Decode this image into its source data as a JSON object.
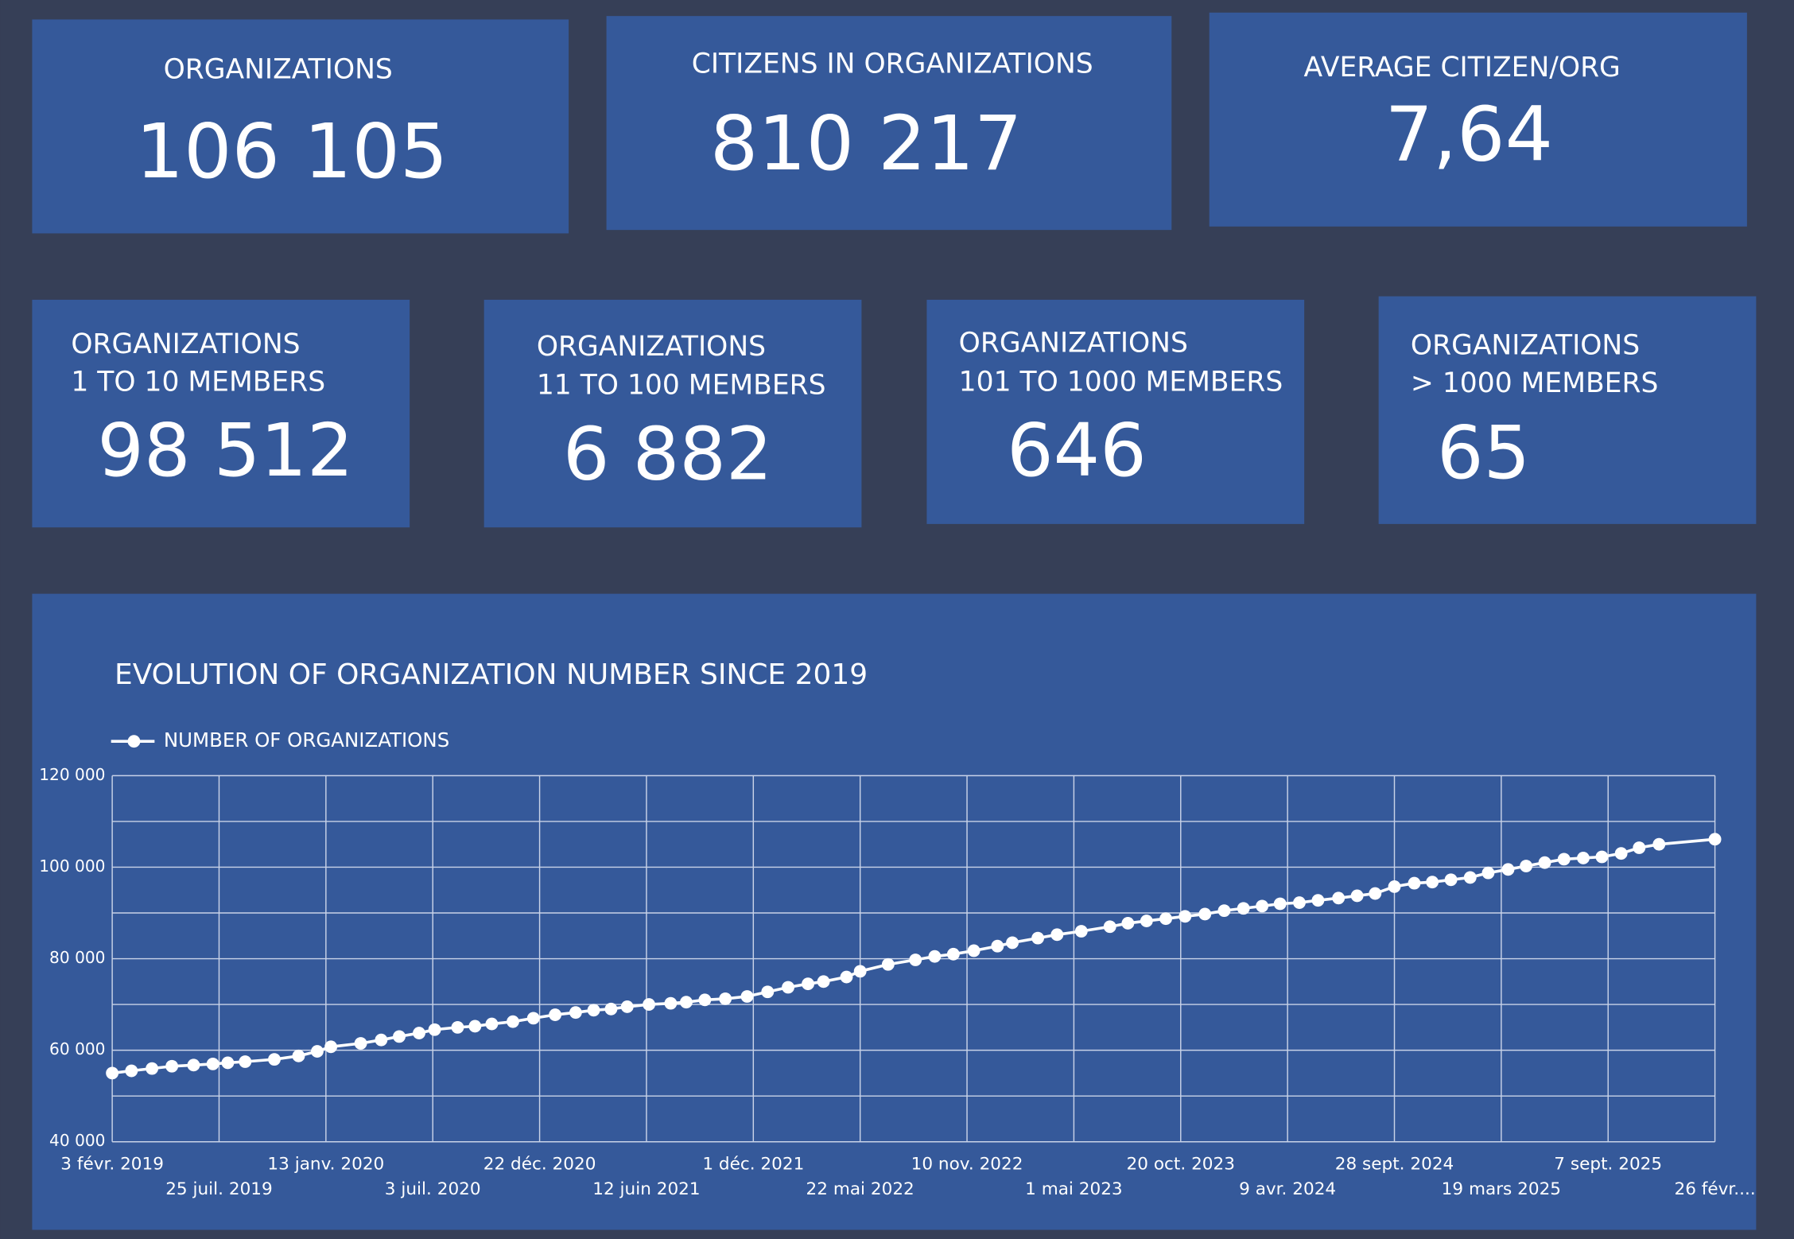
{
  "cards": [
    {
      "title_lines": [
        "ORGANIZATIONS"
      ],
      "value": "106 105"
    },
    {
      "title_lines": [
        "CITIZENS IN ORGANIZATIONS"
      ],
      "value": "810 217"
    },
    {
      "title_lines": [
        "AVERAGE CITIZEN/ORG"
      ],
      "value": "7,64"
    },
    {
      "title_lines": [
        "ORGANIZATIONS",
        "1 TO 10 MEMBERS"
      ],
      "value": "98 512"
    },
    {
      "title_lines": [
        "ORGANIZATIONS",
        "11 TO 100 MEMBERS"
      ],
      "value": "6 882"
    },
    {
      "title_lines": [
        "ORGANIZATIONS",
        "101 TO 1000 MEMBERS"
      ],
      "value": "646"
    },
    {
      "title_lines": [
        "ORGANIZATIONS",
        "> 1000 MEMBERS"
      ],
      "value": "65"
    }
  ],
  "chart_data": {
    "type": "line",
    "title": "EVOLUTION OF ORGANIZATION NUMBER SINCE 2019",
    "x": [
      "2019-02-03",
      "2019-03-06",
      "2019-04-08",
      "2019-05-10",
      "2019-06-14",
      "2019-07-15",
      "2019-08-08",
      "2019-09-05",
      "2019-10-22",
      "2019-11-30",
      "2019-12-30",
      "2020-01-21",
      "2020-03-09",
      "2020-04-11",
      "2020-05-10",
      "2020-06-11",
      "2020-07-06",
      "2020-08-12",
      "2020-09-09",
      "2020-10-06",
      "2020-11-09",
      "2020-12-12",
      "2021-01-16",
      "2021-02-18",
      "2021-03-19",
      "2021-04-16",
      "2021-05-12",
      "2021-06-16",
      "2021-07-21",
      "2021-08-15",
      "2021-09-14",
      "2021-10-17",
      "2021-11-21",
      "2021-12-24",
      "2022-01-26",
      "2022-02-27",
      "2022-03-24",
      "2022-04-30",
      "2022-05-22",
      "2022-07-06",
      "2022-08-19",
      "2022-09-19",
      "2022-10-19",
      "2022-11-21",
      "2022-12-29",
      "2023-01-22",
      "2023-03-04",
      "2023-04-04",
      "2023-05-13",
      "2023-06-28",
      "2023-07-27",
      "2023-08-26",
      "2023-09-26",
      "2023-10-27",
      "2023-11-28",
      "2023-12-29",
      "2024-01-29",
      "2024-02-28",
      "2024-03-28",
      "2024-04-28",
      "2024-05-28",
      "2024-06-30",
      "2024-07-30",
      "2024-08-28",
      "2024-09-28",
      "2024-10-30",
      "2024-11-28",
      "2024-12-28",
      "2025-01-28",
      "2025-02-26",
      "2025-03-30",
      "2025-04-28",
      "2025-05-28",
      "2025-06-28",
      "2025-07-29",
      "2025-08-28",
      "2025-09-28",
      "2025-10-27",
      "2025-11-28",
      "2026-02-26"
    ],
    "series": [
      {
        "name": "NUMBER OF ORGANIZATIONS",
        "color": "#ffffff",
        "values": [
          55000,
          55500,
          56000,
          56500,
          56750,
          57000,
          57250,
          57500,
          58000,
          58750,
          59750,
          60750,
          61500,
          62250,
          63000,
          63750,
          64500,
          65000,
          65250,
          65750,
          66250,
          67000,
          67750,
          68250,
          68750,
          69000,
          69500,
          70000,
          70250,
          70500,
          71000,
          71250,
          71750,
          72750,
          73750,
          74500,
          75000,
          76000,
          77250,
          78750,
          79750,
          80500,
          81000,
          81750,
          82750,
          83500,
          84500,
          85250,
          86000,
          87000,
          87750,
          88250,
          88750,
          89250,
          89750,
          90500,
          91000,
          91500,
          92000,
          92250,
          92750,
          93250,
          93750,
          94250,
          95750,
          96500,
          96750,
          97250,
          97750,
          98750,
          99500,
          100250,
          101000,
          101750,
          102000,
          102250,
          103000,
          104250,
          105000,
          106105
        ]
      }
    ],
    "xlim": [
      "2019-02-03",
      "2026-02-26"
    ],
    "xticks": [
      {
        "value": "2019-02-03",
        "label": "3 févr. 2019"
      },
      {
        "value": "2019-07-25",
        "label": "25 juil. 2019"
      },
      {
        "value": "2020-01-13",
        "label": "13 janv. 2020"
      },
      {
        "value": "2020-07-03",
        "label": "3 juil. 2020"
      },
      {
        "value": "2020-12-22",
        "label": "22 déc. 2020"
      },
      {
        "value": "2021-06-12",
        "label": "12 juin 2021"
      },
      {
        "value": "2021-12-01",
        "label": "1 déc. 2021"
      },
      {
        "value": "2022-05-22",
        "label": "22 mai 2022"
      },
      {
        "value": "2022-11-10",
        "label": "10 nov. 2022"
      },
      {
        "value": "2023-05-01",
        "label": "1 mai 2023"
      },
      {
        "value": "2023-10-20",
        "label": "20 oct. 2023"
      },
      {
        "value": "2024-04-09",
        "label": "9 avr. 2024"
      },
      {
        "value": "2024-09-28",
        "label": "28 sept. 2024"
      },
      {
        "value": "2025-03-19",
        "label": "19 mars 2025"
      },
      {
        "value": "2025-09-07",
        "label": "7 sept. 2025"
      },
      {
        "value": "2026-02-26",
        "label": "26 févr...."
      }
    ],
    "ylim": [
      40000,
      120000
    ],
    "yticks": [
      {
        "value": 40000,
        "label": "40 000"
      },
      {
        "value": 60000,
        "label": "60 000"
      },
      {
        "value": 80000,
        "label": "80 000"
      },
      {
        "value": 100000,
        "label": "100 000"
      },
      {
        "value": 120000,
        "label": "120 000"
      }
    ],
    "y_minor_ticks": [
      50000,
      70000,
      90000,
      110000
    ],
    "grid": true
  }
}
